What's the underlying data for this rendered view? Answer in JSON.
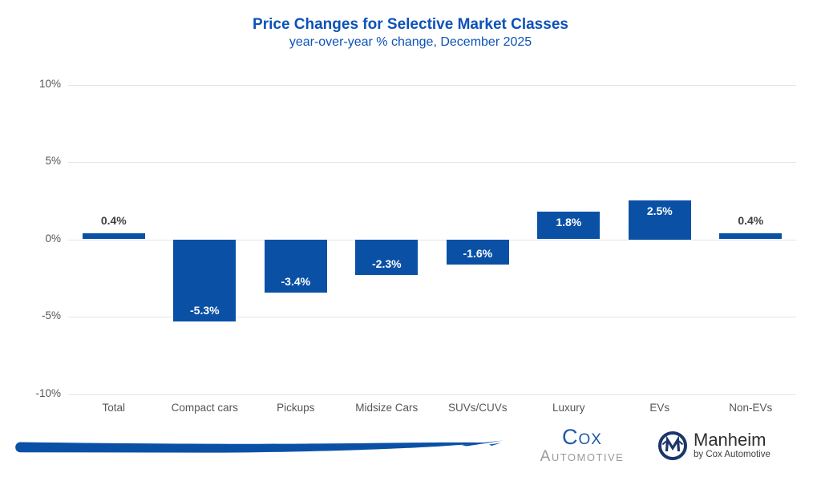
{
  "header": {
    "title": "Price Changes for Selective Market Classes",
    "subtitle": "year-over-year % change, December 2025"
  },
  "chart_data": {
    "type": "bar",
    "title": "Price Changes for Selective Market Classes",
    "subtitle": "year-over-year % change, December 2025",
    "categories": [
      "Total",
      "Compact cars",
      "Pickups",
      "Midsize Cars",
      "SUVs/CUVs",
      "Luxury",
      "EVs",
      "Non-EVs"
    ],
    "values": [
      0.4,
      -5.3,
      -3.4,
      -2.3,
      -1.6,
      1.8,
      2.5,
      0.4
    ],
    "labels": [
      "0.4%",
      "-5.3%",
      "-3.4%",
      "-2.3%",
      "-1.6%",
      "1.8%",
      "2.5%",
      "0.4%"
    ],
    "xlabel": "",
    "ylabel": "",
    "ylim": [
      -10,
      10
    ],
    "yticks": [
      10,
      5,
      0,
      -5,
      -10
    ],
    "ytick_labels": [
      "10%",
      "5%",
      "0%",
      "-5%",
      "-10%"
    ],
    "grid": true,
    "legend": "none",
    "bar_color": "#0A51A6",
    "label_color_inside": "#FFFFFF",
    "label_color_outside": "#3F3F3F"
  },
  "footer": {
    "cox_logo": {
      "line1": "Cox",
      "line2": "Automotive"
    },
    "manheim_logo": {
      "name": "Manheim",
      "tagline": "by Cox Automotive"
    },
    "brush_decoration": "blue-brush-stroke"
  },
  "colors": {
    "title_blue": "#0C52B8",
    "bar_blue": "#0A51A6",
    "grid_gray": "#E4E4E4",
    "axis_text": "#565656",
    "value_label_dark": "#3F3F3F",
    "value_label_white": "#FFFFFF",
    "cox_blue": "#1F5AA5",
    "cox_gray": "#9A9A9A",
    "manheim_navy": "#1B366B",
    "manheim_text": "#2F2F2F"
  }
}
